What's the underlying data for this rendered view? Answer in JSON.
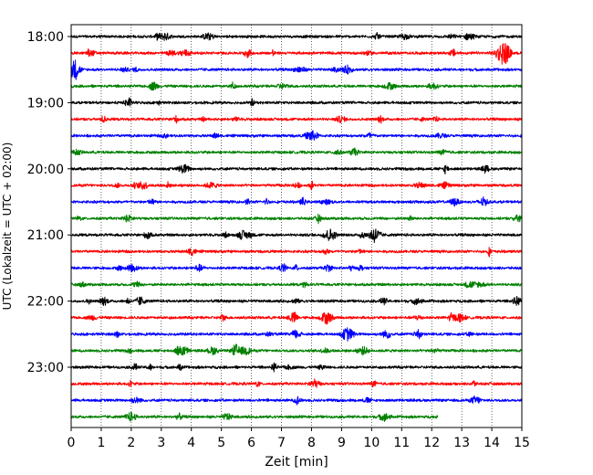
{
  "chart_data": {
    "type": "line",
    "title": "",
    "xlabel": "Zeit  [min]",
    "ylabel": "UTC (Lokalzeit = UTC + 02:00)",
    "xlim": [
      0,
      15
    ],
    "x_ticks": [
      0,
      1,
      2,
      3,
      4,
      5,
      6,
      7,
      8,
      9,
      10,
      11,
      12,
      13,
      14,
      15
    ],
    "x_tick_labels": [
      "0",
      "1",
      "2",
      "3",
      "4",
      "5",
      "6",
      "7",
      "8",
      "9",
      "10",
      "11",
      "12",
      "13",
      "14",
      "15"
    ],
    "y_tick_labels": [
      "18:00",
      "19:00",
      "20:00",
      "21:00",
      "22:00",
      "23:00"
    ],
    "x_grid": true,
    "y_grid": false,
    "row_interval_minutes": 15,
    "trace_colors": [
      "#000000",
      "#ff0000",
      "#0000ff",
      "#008000"
    ],
    "rows": [
      {
        "start": "18:00",
        "end_minute": 15
      },
      {
        "start": "18:15",
        "end_minute": 15
      },
      {
        "start": "18:30",
        "end_minute": 15
      },
      {
        "start": "18:45",
        "end_minute": 15
      },
      {
        "start": "19:00",
        "end_minute": 15
      },
      {
        "start": "19:15",
        "end_minute": 15
      },
      {
        "start": "19:30",
        "end_minute": 15
      },
      {
        "start": "19:45",
        "end_minute": 15
      },
      {
        "start": "20:00",
        "end_minute": 15
      },
      {
        "start": "20:15",
        "end_minute": 15
      },
      {
        "start": "20:30",
        "end_minute": 15
      },
      {
        "start": "20:45",
        "end_minute": 15
      },
      {
        "start": "21:00",
        "end_minute": 15
      },
      {
        "start": "21:15",
        "end_minute": 15
      },
      {
        "start": "21:30",
        "end_minute": 15
      },
      {
        "start": "21:45",
        "end_minute": 15
      },
      {
        "start": "22:00",
        "end_minute": 15
      },
      {
        "start": "22:15",
        "end_minute": 15
      },
      {
        "start": "22:30",
        "end_minute": 15
      },
      {
        "start": "22:45",
        "end_minute": 15
      },
      {
        "start": "23:00",
        "end_minute": 15
      },
      {
        "start": "23:15",
        "end_minute": 15
      },
      {
        "start": "23:30",
        "end_minute": 15
      },
      {
        "start": "23:45",
        "end_minute": 12.2
      }
    ],
    "notable_events": [
      {
        "row_start": "18:15",
        "minute": 14.4,
        "relative_amplitude": 1.0
      },
      {
        "row_start": "18:30",
        "minute": 0.1,
        "relative_amplitude": 0.6
      },
      {
        "row_start": "19:30",
        "minute": 8.0,
        "relative_amplitude": 0.4
      },
      {
        "row_start": "21:00",
        "minute": 8.6,
        "relative_amplitude": 0.45
      },
      {
        "row_start": "21:00",
        "minute": 10.1,
        "relative_amplitude": 0.4
      },
      {
        "row_start": "22:15",
        "minute": 8.5,
        "relative_amplitude": 0.45
      },
      {
        "row_start": "22:30",
        "minute": 9.2,
        "relative_amplitude": 0.5
      },
      {
        "row_start": "22:45",
        "minute": 3.7,
        "relative_amplitude": 0.35
      }
    ]
  }
}
